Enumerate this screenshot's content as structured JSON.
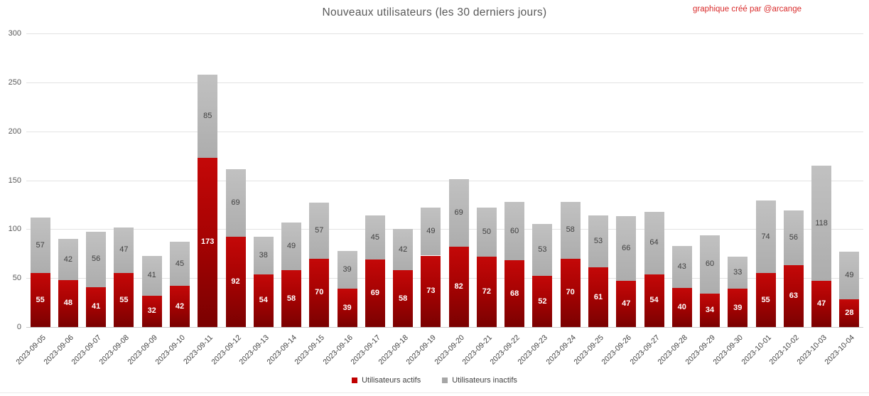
{
  "header": {
    "title": "Nouveaux utilisateurs (les 30 derniers jours)",
    "credit": "graphique créé par @arcange"
  },
  "legend": [
    {
      "label": "Utilisateurs actifs",
      "color": "#c00000"
    },
    {
      "label": "Utilisateurs inactifs",
      "color": "#a6a6a6"
    }
  ],
  "chart_data": {
    "type": "bar",
    "stacked": true,
    "title": "Nouveaux utilisateurs (les 30 derniers jours)",
    "xlabel": "",
    "ylabel": "",
    "ylim": [
      0,
      300
    ],
    "y_ticks": [
      0,
      50,
      100,
      150,
      200,
      250,
      300
    ],
    "grid": true,
    "legend_position": "bottom",
    "categories": [
      "2023-09-05",
      "2023-09-06",
      "2023-09-07",
      "2023-09-08",
      "2023-09-09",
      "2023-09-10",
      "2023-09-11",
      "2023-09-12",
      "2023-09-13",
      "2023-09-14",
      "2023-09-15",
      "2023-09-16",
      "2023-09-17",
      "2023-09-18",
      "2023-09-19",
      "2023-09-20",
      "2023-09-21",
      "2023-09-22",
      "2023-09-23",
      "2023-09-24",
      "2023-09-25",
      "2023-09-26",
      "2023-09-27",
      "2023-09-28",
      "2023-09-29",
      "2023-09-30",
      "2023-10-01",
      "2023-10-02",
      "2023-10-03",
      "2023-10-04"
    ],
    "series": [
      {
        "name": "Utilisateurs actifs",
        "color": "#c00000",
        "values": [
          55,
          48,
          41,
          55,
          32,
          42,
          173,
          92,
          54,
          58,
          70,
          39,
          69,
          58,
          73,
          82,
          72,
          68,
          52,
          70,
          61,
          47,
          54,
          40,
          34,
          39,
          55,
          63,
          47,
          28
        ]
      },
      {
        "name": "Utilisateurs inactifs",
        "color": "#b3b3b3",
        "values": [
          57,
          42,
          56,
          47,
          41,
          45,
          85,
          69,
          38,
          49,
          57,
          39,
          45,
          42,
          49,
          69,
          50,
          60,
          53,
          58,
          53,
          66,
          64,
          43,
          60,
          33,
          74,
          56,
          118,
          49
        ]
      }
    ]
  }
}
